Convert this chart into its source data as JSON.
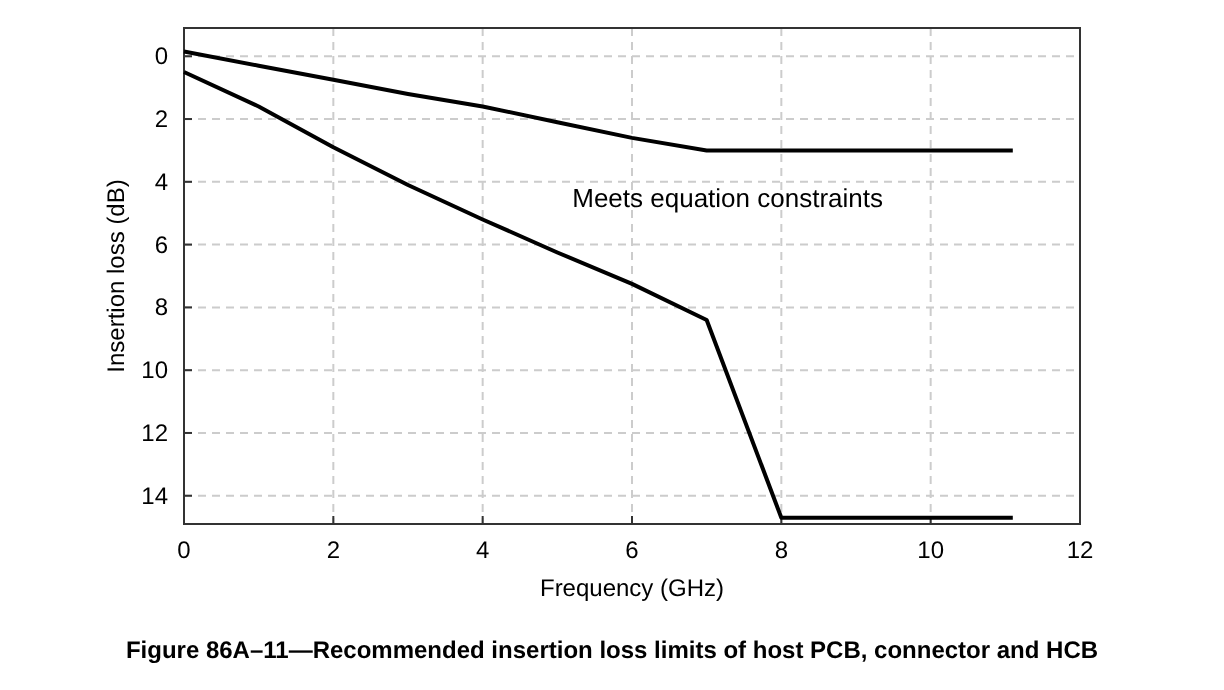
{
  "chart_data": {
    "type": "line",
    "title": "Figure 86A–11—Recommended insertion loss limits of host PCB, connector and HCB",
    "xlabel": "Frequency (GHz)",
    "ylabel": "Insertion loss (dB)",
    "annotations": [
      "Meets equation constraints"
    ],
    "xlim": [
      0,
      12
    ],
    "ylim": [
      14.9,
      -0.9
    ],
    "xticks": [
      0,
      2,
      4,
      6,
      8,
      10,
      12
    ],
    "yticks": [
      0,
      2,
      4,
      6,
      8,
      10,
      12,
      14
    ],
    "grid": true,
    "line_style": "solid",
    "series": [
      {
        "color": "#000000",
        "x": [
          0,
          1,
          2,
          3,
          4,
          5,
          6,
          7,
          11.1
        ],
        "values": [
          -0.15,
          0.3,
          0.75,
          1.2,
          1.6,
          2.1,
          2.6,
          3.0,
          3.0
        ]
      },
      {
        "color": "#000000",
        "x": [
          0,
          1,
          2,
          3,
          4,
          5,
          6,
          7,
          8,
          11.1
        ],
        "values": [
          0.5,
          1.6,
          2.9,
          4.1,
          5.2,
          6.25,
          7.25,
          8.4,
          14.7,
          14.7
        ]
      }
    ]
  }
}
